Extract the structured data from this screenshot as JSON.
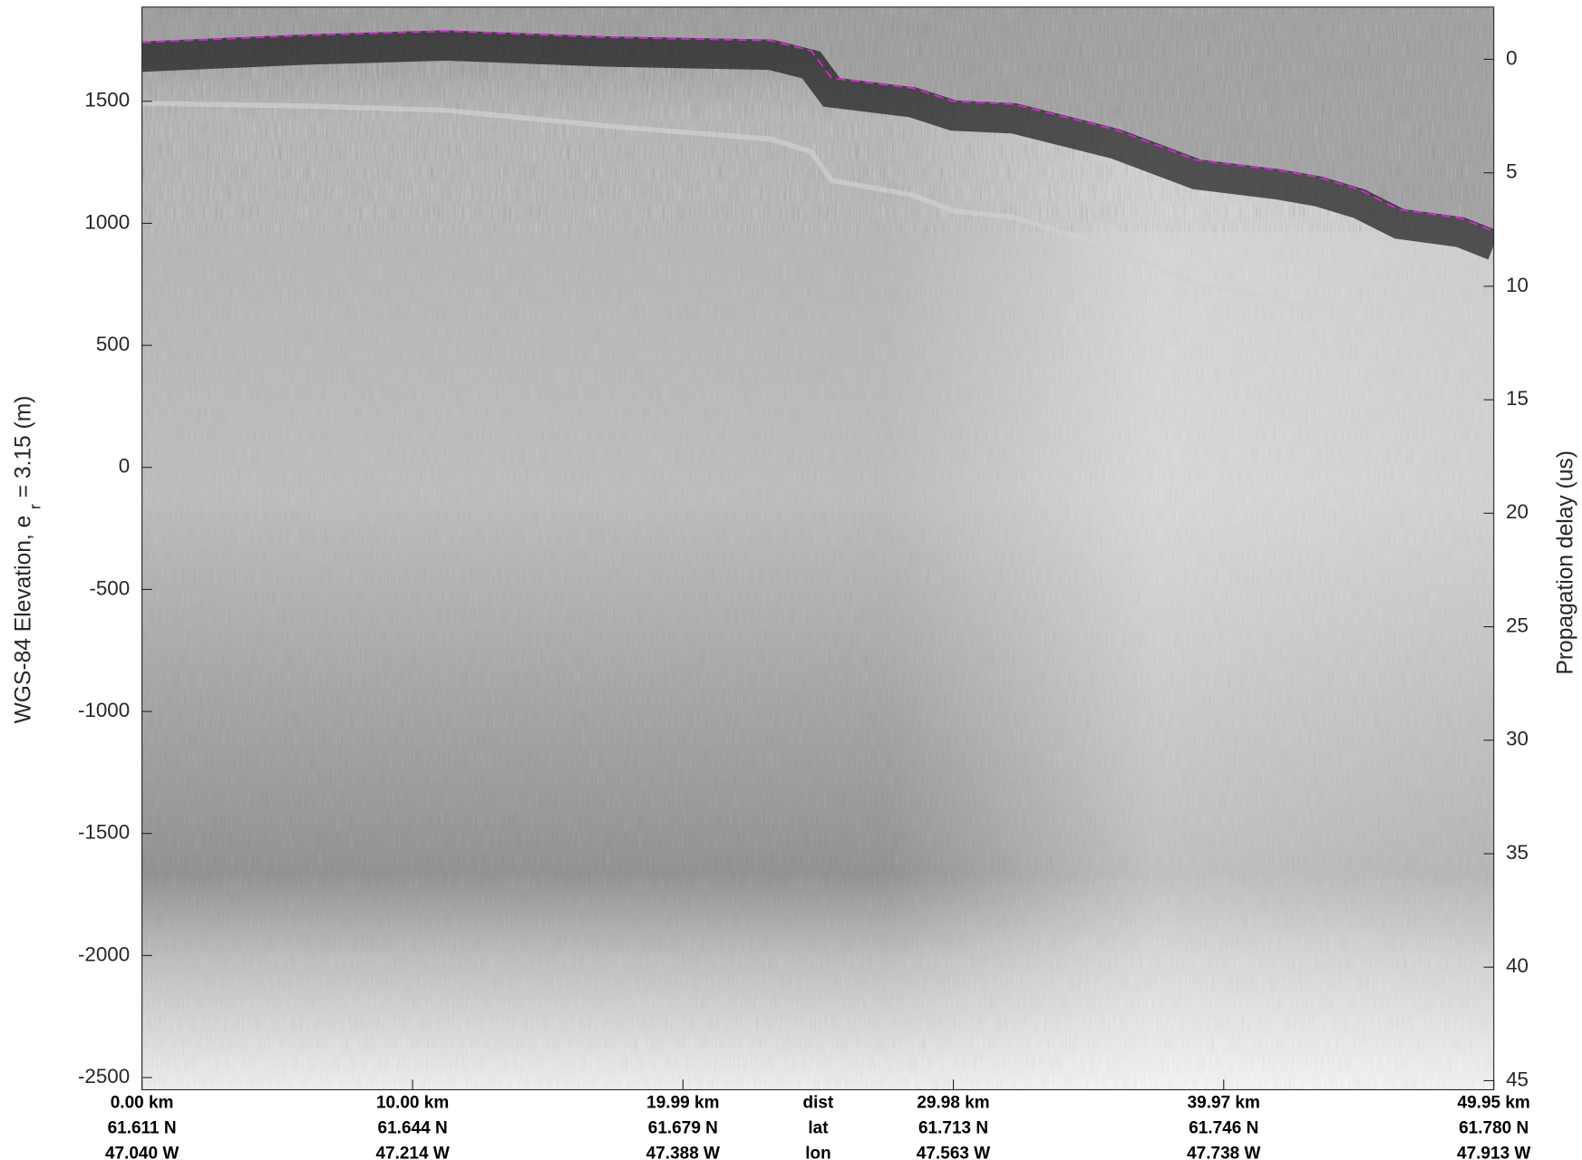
{
  "chart_data": {
    "type": "radargram",
    "ylabel": {
      "text": "WGS-84 Elevation, e",
      "subscript": "r",
      "suffix": "= 3.15 (m)"
    },
    "y2label": "Propagation delay (us)",
    "xlim": [
      0,
      49.95
    ],
    "xticks": [
      {
        "value": 0,
        "label": "0.00 km"
      },
      {
        "value": 10,
        "label": "10.00 km"
      },
      {
        "value": 19.99,
        "label": "19.99 km"
      },
      {
        "value": 29.98,
        "label": "29.98 km"
      },
      {
        "value": 39.97,
        "label": "39.97 km"
      },
      {
        "value": 49.95,
        "label": "49.95 km"
      }
    ],
    "row_headers": [
      "dist",
      "lat",
      "lon"
    ],
    "lat_labels": [
      "61.611 N",
      "61.644 N",
      "61.679 N",
      "61.713 N",
      "61.746 N",
      "61.780 N"
    ],
    "lon_labels": [
      "47.040 W",
      "47.214 W",
      "47.388 W",
      "47.563 W",
      "47.738 W",
      "47.913 W"
    ],
    "ylim": [
      -2550,
      1886
    ],
    "yticks": [
      1500,
      1000,
      500,
      0,
      -500,
      -1000,
      -1500,
      -2000,
      -2500
    ],
    "y2lim": [
      45.4,
      -2.3
    ],
    "y2ticks": [
      0,
      5,
      10,
      15,
      20,
      25,
      30,
      35,
      40,
      45
    ],
    "series": [
      {
        "name": "surface",
        "color": "#e020e0",
        "x": [
          0,
          6.0,
          11.24,
          17.24,
          23.23,
          24.73,
          25.48,
          28.48,
          29.98,
          32.23,
          35.97,
          38.97,
          41.97,
          43.47,
          44.97,
          46.46,
          48.71,
          49.95
        ],
        "values": [
          1741,
          1770,
          1787,
          1762,
          1749,
          1707,
          1595,
          1554,
          1500,
          1488,
          1384,
          1259,
          1218,
          1189,
          1139,
          1056,
          1022,
          968
        ]
      }
    ]
  }
}
